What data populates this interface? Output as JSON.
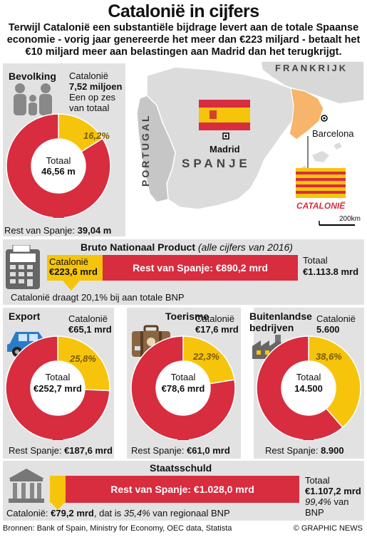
{
  "title": "Catalonië in cijfers",
  "intro": "Terwijl Catalonië een substantiële bijdrage levert aan de totale Spaanse economie - vorig jaar genereerde het meer dan €223 miljard - betaalt het €10 miljard meer aan belastingen aan Madrid dan het terugkrijgt.",
  "colors": {
    "catalonia": "#f6c40b",
    "rest": "#d82c3f",
    "panel": "#e2e2e2"
  },
  "map": {
    "labels": {
      "france": "FRANKRIJK",
      "portugal": "PORTUGAL",
      "spain": "SPANJE",
      "madrid": "Madrid",
      "barcelona": "Barcelona",
      "catalonia": "CATALONIË"
    },
    "scale": "200km"
  },
  "population": {
    "heading": "Bevolking",
    "cat_label": "Catalonië",
    "cat_value": "7,52 miljoen",
    "note_line1": "Een op zes",
    "note_line2": "van totaal",
    "total_label": "Totaal",
    "total_value": "46,56 m",
    "rest_label": "Rest van Spanje:",
    "rest_value": "39,04 m"
  },
  "gdp": {
    "heading": "Bruto Nationaal Product",
    "subheading": "(alle cijfers van 2016)",
    "cat_label": "Catalonië",
    "cat_value": "€223,6 mrd",
    "rest_text": "Rest van Spanje: €890,2 mrd",
    "total_label": "Totaal",
    "total_value": "€1.113.8 mrd",
    "note": "Catalonië draagt 20,1% bij aan totale BNP"
  },
  "export": {
    "heading": "Export",
    "cat_label": "Catalonië",
    "cat_value": "€65,1 mrd",
    "total_label": "Totaal",
    "total_value": "€252,7 mrd",
    "rest_label": "Rest Spanje:",
    "rest_value": "€187,6 mrd"
  },
  "tourism": {
    "heading": "Toerisme",
    "cat_label": "Catalonië",
    "cat_value": "€17,6 mrd",
    "total_label": "Totaal",
    "total_value": "€78,6 mrd",
    "rest_label": "Rest Spanje:",
    "rest_value": "€61,0 mrd"
  },
  "foreign": {
    "heading_line1": "Buitenlandse",
    "heading_line2": "bedrijven",
    "cat_label": "Catalonië",
    "cat_value": "5.600",
    "total_label": "Totaal",
    "total_value": "14.500",
    "rest_label": "Rest Spanje:",
    "rest_value": "8.900"
  },
  "debt": {
    "heading": "Staatsschuld",
    "rest_text": "Rest van Spanje: €1.028,0 mrd",
    "total_label": "Totaal",
    "total_value": "€1.107,2 mrd",
    "pct_value": "99,4%",
    "pct_suffix": "van",
    "pct_line2": "BNP",
    "cat_label": "Catalonië:",
    "cat_value": "€79,2 mrd",
    "note_mid": ", dat is",
    "note_pct": "35,4%",
    "note_end": "van regionaal BNP"
  },
  "footer": {
    "sources": "Bronnen: Bank of Spain, Ministry for Economy, OEC data, Statista",
    "credit": "© GRAPHIC NEWS"
  },
  "chart_data": [
    {
      "type": "pie",
      "name": "Bevolking",
      "categories": [
        "Catalonië",
        "Rest van Spanje"
      ],
      "values": [
        7.52,
        39.04
      ],
      "labels": [
        "16,2%",
        ""
      ],
      "total": 46.56
    },
    {
      "type": "bar",
      "name": "Bruto Nationaal Product",
      "categories": [
        "Catalonië",
        "Rest van Spanje"
      ],
      "values": [
        223.6,
        890.2
      ],
      "total": 1113.8
    },
    {
      "type": "pie",
      "name": "Export",
      "categories": [
        "Catalonië",
        "Rest Spanje"
      ],
      "values": [
        65.1,
        187.6
      ],
      "labels": [
        "25,8%",
        ""
      ],
      "total": 252.7
    },
    {
      "type": "pie",
      "name": "Toerisme",
      "categories": [
        "Catalonië",
        "Rest Spanje"
      ],
      "values": [
        17.6,
        61.0
      ],
      "labels": [
        "22,3%",
        ""
      ],
      "total": 78.6
    },
    {
      "type": "pie",
      "name": "Buitenlandse bedrijven",
      "categories": [
        "Catalonië",
        "Rest Spanje"
      ],
      "values": [
        5600,
        8900
      ],
      "labels": [
        "38,6%",
        ""
      ],
      "total": 14500
    },
    {
      "type": "bar",
      "name": "Staatsschuld",
      "categories": [
        "Catalonië",
        "Rest van Spanje"
      ],
      "values": [
        79.2,
        1028.0
      ],
      "total": 1107.2
    }
  ]
}
